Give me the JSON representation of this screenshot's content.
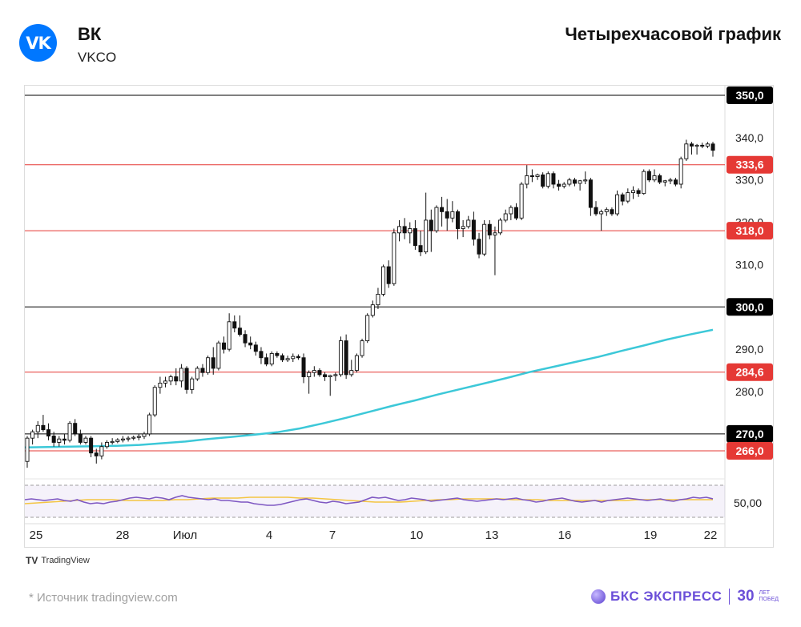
{
  "header": {
    "logo_text": "VK",
    "company": "ВК",
    "ticker": "VKCO",
    "chart_title": "Четырехчасовой график"
  },
  "footer": {
    "source": "*  Источник tradingview.com",
    "tradingview": "TradingView",
    "brand_name": "БКС ЭКСПРЕСС",
    "brand_years": "30",
    "brand_sub1": "ЛЕТ",
    "brand_sub2": "ПОБЕД"
  },
  "colors": {
    "ema": "#3cc8d8",
    "rsi": "#7e57c2",
    "rsi_ma": "#f4c542",
    "support": "#e53935",
    "level": "#000000"
  },
  "chart_data": {
    "type": "candlestick",
    "timeframe": "4h",
    "ylim": [
      260,
      352
    ],
    "x_ticks": [
      "25",
      "28",
      "Июл",
      "4",
      "7",
      "10",
      "13",
      "16",
      "19",
      "22"
    ],
    "y_ticks": [
      "280,0",
      "290,0",
      "310,0",
      "320,0",
      "330,0",
      "340,0"
    ],
    "levels": [
      {
        "value": 350.0,
        "label": "350,0",
        "kind": "black"
      },
      {
        "value": 333.6,
        "label": "333,6",
        "kind": "red"
      },
      {
        "value": 318.0,
        "label": "318,0",
        "kind": "red"
      },
      {
        "value": 300.0,
        "label": "300,0",
        "kind": "black"
      },
      {
        "value": 284.6,
        "label": "284,6",
        "kind": "red"
      },
      {
        "value": 270.0,
        "label": "270,0",
        "kind": "black"
      },
      {
        "value": 266.0,
        "label": "266,0",
        "kind": "red"
      }
    ],
    "candles": [
      [
        263.5,
        269.5,
        262.0,
        269.0
      ],
      [
        269.0,
        271.0,
        267.5,
        270.5
      ],
      [
        270.5,
        273.0,
        269.0,
        272.0
      ],
      [
        272.0,
        274.5,
        270.5,
        271.0
      ],
      [
        271.0,
        272.5,
        268.5,
        269.5
      ],
      [
        269.5,
        270.5,
        267.0,
        268.0
      ],
      [
        268.0,
        269.5,
        267.0,
        268.8
      ],
      [
        268.8,
        270.0,
        267.5,
        268.5
      ],
      [
        268.5,
        273.0,
        268.0,
        272.5
      ],
      [
        272.5,
        273.5,
        269.5,
        270.0
      ],
      [
        270.0,
        271.0,
        267.5,
        268.0
      ],
      [
        268.0,
        269.5,
        267.5,
        269.0
      ],
      [
        269.0,
        269.5,
        264.5,
        265.5
      ],
      [
        265.5,
        266.5,
        263.0,
        264.8
      ],
      [
        264.8,
        268.0,
        264.0,
        267.0
      ],
      [
        267.0,
        268.5,
        266.5,
        268.0
      ],
      [
        268.0,
        269.0,
        267.5,
        268.2
      ],
      [
        268.2,
        269.0,
        267.8,
        268.6
      ],
      [
        268.6,
        269.5,
        268.0,
        268.8
      ],
      [
        268.8,
        269.5,
        268.2,
        269.0
      ],
      [
        269.0,
        269.6,
        268.5,
        269.2
      ],
      [
        269.2,
        270.0,
        268.5,
        269.4
      ],
      [
        269.4,
        270.5,
        268.8,
        270.0
      ],
      [
        270.0,
        275.0,
        269.5,
        274.5
      ],
      [
        274.5,
        281.5,
        274.0,
        281.0
      ],
      [
        281.0,
        283.5,
        279.5,
        282.0
      ],
      [
        282.0,
        283.5,
        281.0,
        282.5
      ],
      [
        282.5,
        284.0,
        281.5,
        283.5
      ],
      [
        283.5,
        285.5,
        281.5,
        282.5
      ],
      [
        282.5,
        286.5,
        281.0,
        285.5
      ],
      [
        285.5,
        286.0,
        279.5,
        280.5
      ],
      [
        280.5,
        283.5,
        279.5,
        283.0
      ],
      [
        283.0,
        286.0,
        282.5,
        285.5
      ],
      [
        285.5,
        286.5,
        283.5,
        284.5
      ],
      [
        284.5,
        288.5,
        284.0,
        288.0
      ],
      [
        288.0,
        290.5,
        284.0,
        285.5
      ],
      [
        285.5,
        292.0,
        285.0,
        291.5
      ],
      [
        291.5,
        293.0,
        289.0,
        290.0
      ],
      [
        290.0,
        298.5,
        289.5,
        296.5
      ],
      [
        296.5,
        298.0,
        294.0,
        295.0
      ],
      [
        295.0,
        298.0,
        293.0,
        293.5
      ],
      [
        293.5,
        294.5,
        290.5,
        291.5
      ],
      [
        291.5,
        293.0,
        290.0,
        291.0
      ],
      [
        291.0,
        291.8,
        288.5,
        289.5
      ],
      [
        289.5,
        290.5,
        286.5,
        288.0
      ],
      [
        288.0,
        289.0,
        286.0,
        286.5
      ],
      [
        286.5,
        289.5,
        286.0,
        289.0
      ],
      [
        289.0,
        289.5,
        288.0,
        288.5
      ],
      [
        288.5,
        289.0,
        287.0,
        287.5
      ],
      [
        287.5,
        288.5,
        287.0,
        287.8
      ],
      [
        287.8,
        289.0,
        287.0,
        288.3
      ],
      [
        288.3,
        288.8,
        287.5,
        288.0
      ],
      [
        288.0,
        289.0,
        282.0,
        283.5
      ],
      [
        283.5,
        285.0,
        279.5,
        284.5
      ],
      [
        284.5,
        286.0,
        283.5,
        285.0
      ],
      [
        285.0,
        285.5,
        283.5,
        284.0
      ],
      [
        284.0,
        284.6,
        282.5,
        283.5
      ],
      [
        283.5,
        284.0,
        279.0,
        283.8
      ],
      [
        283.8,
        284.5,
        282.5,
        284.0
      ],
      [
        284.0,
        293.0,
        283.5,
        292.0
      ],
      [
        292.0,
        293.5,
        283.0,
        284.0
      ],
      [
        284.0,
        287.5,
        283.5,
        285.0
      ],
      [
        285.0,
        289.0,
        284.5,
        288.5
      ],
      [
        288.5,
        292.5,
        288.0,
        292.0
      ],
      [
        292.0,
        298.5,
        291.5,
        298.0
      ],
      [
        298.0,
        301.5,
        297.5,
        300.5
      ],
      [
        300.5,
        304.5,
        299.5,
        303.0
      ],
      [
        303.0,
        310.0,
        302.5,
        309.5
      ],
      [
        309.5,
        311.0,
        304.5,
        305.5
      ],
      [
        305.5,
        318.5,
        305.0,
        317.5
      ],
      [
        317.5,
        320.5,
        315.5,
        319.0
      ],
      [
        319.0,
        321.0,
        316.0,
        317.5
      ],
      [
        317.5,
        320.0,
        315.0,
        318.5
      ],
      [
        318.5,
        320.5,
        313.5,
        314.5
      ],
      [
        314.5,
        318.0,
        312.0,
        313.0
      ],
      [
        313.0,
        327.0,
        312.5,
        320.5
      ],
      [
        320.5,
        323.0,
        313.0,
        318.0
      ],
      [
        318.0,
        324.0,
        317.5,
        323.5
      ],
      [
        323.5,
        326.0,
        319.0,
        322.5
      ],
      [
        322.5,
        325.5,
        318.0,
        321.0
      ],
      [
        321.0,
        325.0,
        320.0,
        322.5
      ],
      [
        322.5,
        323.0,
        316.0,
        318.5
      ],
      [
        318.5,
        320.5,
        316.5,
        319.0
      ],
      [
        319.0,
        321.5,
        318.5,
        320.5
      ],
      [
        320.5,
        322.5,
        314.5,
        316.0
      ],
      [
        316.0,
        317.5,
        311.5,
        312.5
      ],
      [
        312.5,
        320.5,
        312.0,
        319.5
      ],
      [
        319.5,
        320.5,
        316.0,
        317.0
      ],
      [
        317.0,
        319.0,
        307.5,
        317.5
      ],
      [
        317.5,
        321.0,
        317.0,
        320.5
      ],
      [
        320.5,
        323.0,
        320.0,
        322.0
      ],
      [
        322.0,
        324.0,
        320.5,
        323.5
      ],
      [
        323.5,
        324.5,
        320.5,
        321.0
      ],
      [
        321.0,
        329.5,
        320.5,
        329.0
      ],
      [
        329.0,
        333.5,
        328.0,
        331.0
      ],
      [
        331.0,
        332.5,
        329.5,
        330.8
      ],
      [
        330.8,
        331.5,
        330.0,
        331.2
      ],
      [
        331.2,
        331.8,
        328.0,
        328.5
      ],
      [
        328.5,
        332.0,
        328.0,
        331.5
      ],
      [
        331.5,
        332.0,
        328.0,
        329.0
      ],
      [
        329.0,
        330.0,
        327.5,
        328.5
      ],
      [
        328.5,
        329.5,
        328.0,
        329.0
      ],
      [
        329.0,
        330.5,
        328.5,
        330.0
      ],
      [
        330.0,
        330.5,
        328.5,
        329.2
      ],
      [
        329.2,
        330.0,
        327.5,
        329.8
      ],
      [
        329.8,
        332.0,
        329.0,
        330.0
      ],
      [
        330.0,
        330.5,
        321.5,
        323.5
      ],
      [
        323.5,
        325.0,
        321.5,
        322.0
      ],
      [
        322.0,
        323.0,
        318.0,
        322.5
      ],
      [
        322.5,
        323.5,
        321.5,
        323.0
      ],
      [
        323.0,
        323.5,
        321.5,
        322.0
      ],
      [
        322.0,
        327.5,
        321.5,
        326.5
      ],
      [
        326.5,
        327.0,
        324.0,
        325.0
      ],
      [
        325.0,
        328.0,
        324.5,
        327.0
      ],
      [
        327.0,
        328.5,
        325.5,
        327.5
      ],
      [
        327.5,
        328.0,
        326.0,
        326.8
      ],
      [
        326.8,
        332.5,
        326.5,
        332.0
      ],
      [
        332.0,
        332.5,
        329.5,
        330.0
      ],
      [
        330.0,
        332.5,
        329.5,
        331.0
      ],
      [
        331.0,
        331.5,
        329.0,
        329.5
      ],
      [
        329.5,
        330.0,
        328.5,
        329.8
      ],
      [
        329.8,
        330.5,
        329.0,
        330.0
      ],
      [
        330.0,
        330.5,
        328.5,
        329.0
      ],
      [
        329.0,
        335.5,
        328.0,
        335.0
      ],
      [
        335.0,
        339.5,
        334.5,
        338.5
      ],
      [
        338.5,
        339.0,
        336.0,
        338.0
      ],
      [
        338.0,
        338.5,
        336.0,
        338.2
      ],
      [
        338.2,
        338.8,
        337.5,
        338.0
      ],
      [
        338.0,
        339.0,
        337.5,
        338.5
      ],
      [
        338.5,
        339.0,
        335.5,
        337.0
      ]
    ],
    "ema": [
      266.8,
      266.9,
      267.0,
      267.1,
      267.2,
      267.4,
      267.8,
      268.2,
      268.8,
      269.3,
      269.8,
      270.4,
      271.3,
      272.5,
      273.8,
      275.2,
      276.6,
      277.9,
      279.3,
      280.6,
      281.9,
      283.2,
      284.6,
      285.8,
      287.0,
      288.2,
      289.6,
      290.9,
      292.3,
      293.5,
      294.6
    ],
    "rsi": [
      52,
      53,
      52,
      51,
      52,
      53,
      51,
      50,
      52,
      49,
      47,
      48,
      47,
      49,
      50,
      52,
      54,
      55,
      54,
      53,
      55,
      54,
      52,
      55,
      57,
      55,
      54,
      53,
      52,
      53,
      51,
      51,
      50,
      49,
      49,
      47,
      46,
      45,
      45,
      46,
      48,
      50,
      52,
      53,
      51,
      49,
      48,
      50,
      49,
      47,
      48,
      49,
      52,
      55,
      54,
      55,
      53,
      51,
      52,
      54,
      53,
      52,
      50,
      51,
      52,
      53,
      54,
      52,
      51,
      50,
      51,
      52,
      53,
      52,
      53,
      54,
      52,
      51,
      49,
      50,
      52,
      53,
      54,
      52,
      50,
      49,
      50,
      51,
      49,
      51,
      52,
      53,
      54,
      53,
      52,
      51,
      52,
      53,
      51,
      50,
      52,
      53,
      55,
      54,
      55,
      53
    ],
    "rsi_ma": [
      47,
      48,
      49,
      50,
      51,
      52,
      52,
      52,
      51,
      51,
      51,
      51,
      52,
      52,
      53,
      54,
      54,
      54,
      55,
      55,
      55,
      55,
      54,
      54,
      53,
      52,
      51,
      50,
      49,
      49,
      49,
      50,
      51,
      52,
      52,
      53,
      53,
      53,
      53,
      52,
      52,
      52,
      51,
      51,
      51,
      51,
      51,
      51,
      51,
      52,
      52,
      52,
      52,
      52,
      52,
      52
    ],
    "rsi_axis_label": "50,00"
  }
}
